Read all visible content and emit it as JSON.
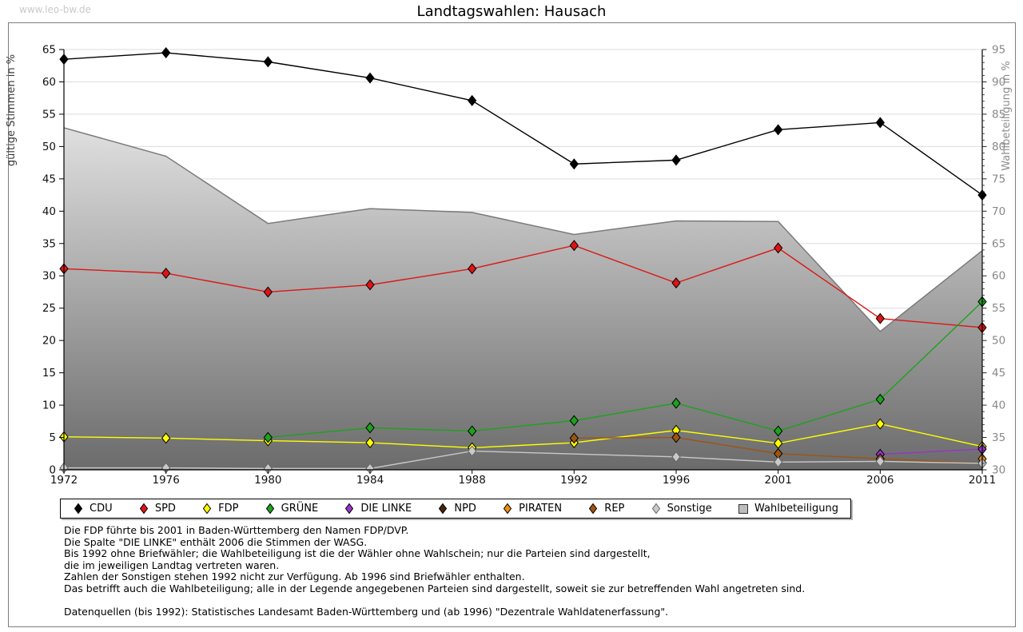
{
  "watermark": "www.leo-bw.de",
  "title": "Landtagswahlen: Hausach",
  "chart_data": {
    "type": "line",
    "title": "Landtagswahlen: Hausach",
    "x_categories": [
      "1972",
      "1976",
      "1980",
      "1984",
      "1988",
      "1992",
      "1996",
      "2001",
      "2006",
      "2011"
    ],
    "left_axis": {
      "label": "gültige Stimmen in %",
      "min": 0,
      "max": 65,
      "step": 5
    },
    "right_axis": {
      "label": "Wahlbeteiligung in %",
      "min": 30,
      "max": 95,
      "step": 5,
      "minor_step": 1
    },
    "grid": "horizontal",
    "legend_position": "bottom",
    "series": [
      {
        "name": "CDU",
        "color": "#000000",
        "values": [
          63.5,
          64.5,
          63.1,
          60.6,
          57.1,
          47.3,
          47.9,
          52.6,
          53.7,
          42.5
        ]
      },
      {
        "name": "SPD",
        "color": "#dd1515",
        "values": [
          31.1,
          30.4,
          27.5,
          28.6,
          31.1,
          34.7,
          28.9,
          34.3,
          23.4,
          22.0
        ]
      },
      {
        "name": "FDP",
        "color": "#ffff00",
        "values": [
          5.1,
          4.9,
          4.5,
          4.2,
          3.4,
          4.2,
          6.1,
          4.1,
          7.1,
          3.6
        ]
      },
      {
        "name": "GRÜNE",
        "color": "#1da21d",
        "values": [
          null,
          null,
          5.0,
          6.5,
          6.0,
          7.6,
          10.3,
          6.0,
          10.9,
          26.0
        ]
      },
      {
        "name": "DIE LINKE",
        "color": "#9933cc",
        "values": [
          null,
          null,
          null,
          null,
          null,
          null,
          null,
          null,
          2.4,
          3.2
        ]
      },
      {
        "name": "NPD",
        "color": "#45230a",
        "values": [
          null,
          null,
          null,
          null,
          null,
          null,
          null,
          null,
          null,
          1.1
        ]
      },
      {
        "name": "PIRATEN",
        "color": "#ef8e10",
        "values": [
          null,
          null,
          null,
          null,
          null,
          null,
          null,
          null,
          null,
          1.7
        ]
      },
      {
        "name": "REP",
        "color": "#9e5410",
        "values": [
          null,
          null,
          null,
          null,
          null,
          4.9,
          5.0,
          2.5,
          1.7,
          1.0
        ]
      },
      {
        "name": "Sonstige",
        "color": "#c9c9c9",
        "edge": "#666666",
        "values": [
          0.3,
          0.3,
          0.2,
          0.2,
          2.9,
          null,
          2.0,
          1.2,
          1.3,
          1.0
        ]
      }
    ],
    "area": {
      "name": "Wahlbeteiligung",
      "axis": "right",
      "stroke": "#7a7a7a",
      "fill_top": "#fafafa",
      "fill_bottom": "#6b6b6b",
      "values": [
        82.9,
        78.5,
        68.1,
        70.4,
        69.8,
        66.4,
        68.5,
        68.4,
        51.4,
        63.9
      ]
    }
  },
  "notes": {
    "lines": [
      "Die FDP führte bis 2001 in Baden-Württemberg den Namen FDP/DVP.",
      "Die Spalte \"DIE LINKE\" enthält 2006 die Stimmen der WASG.",
      "Bis 1992 ohne Briefwähler; die Wahlbeteiligung ist die der Wähler ohne Wahlschein; nur die Parteien sind dargestellt,",
      "die im jeweiligen Landtag vertreten waren.",
      "Zahlen der Sonstigen stehen 1992 nicht zur Verfügung. Ab 1996 sind Briefwähler enthalten.",
      "Das betrifft auch die Wahlbeteiligung; alle in der Legende angegebenen Parteien sind dargestellt, soweit sie zur betreffenden Wahl angetreten sind.",
      "",
      "Datenquellen (bis 1992): Statistisches Landesamt Baden-Württemberg und (ab 1996) \"Dezentrale Wahldatenerfassung\"."
    ]
  }
}
